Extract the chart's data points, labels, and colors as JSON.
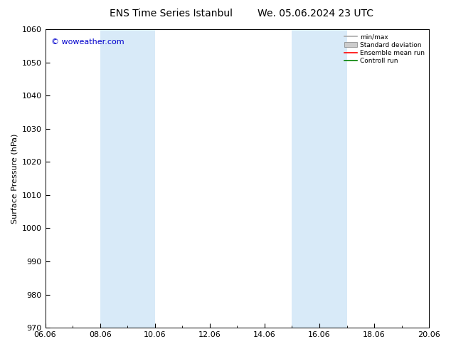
{
  "title_left": "ENS Time Series Istanbul",
  "title_right": "We. 05.06.2024 23 UTC",
  "ylabel": "Surface Pressure (hPa)",
  "ylim": [
    970,
    1060
  ],
  "yticks": [
    970,
    980,
    990,
    1000,
    1010,
    1020,
    1030,
    1040,
    1050,
    1060
  ],
  "xlim_left": 0,
  "xlim_right": 14,
  "xtick_positions": [
    0,
    2,
    4,
    6,
    8,
    10,
    12,
    14
  ],
  "xtick_labels": [
    "06.06",
    "08.06",
    "10.06",
    "12.06",
    "14.06",
    "16.06",
    "18.06",
    "20.06"
  ],
  "shaded_regions": [
    {
      "xmin": 2,
      "xmax": 4,
      "color": "#d8eaf8"
    },
    {
      "xmin": 9,
      "xmax": 11,
      "color": "#d8eaf8"
    }
  ],
  "watermark": "© woweather.com",
  "watermark_color": "#0000cc",
  "background_color": "#ffffff",
  "plot_bg_color": "#ffffff",
  "legend_items": [
    {
      "label": "min/max",
      "type": "line",
      "color": "#aaaaaa",
      "lw": 1.2
    },
    {
      "label": "Standard deviation",
      "type": "rect",
      "color": "#cccccc"
    },
    {
      "label": "Ensemble mean run",
      "type": "line",
      "color": "#ff0000",
      "lw": 1.2
    },
    {
      "label": "Controll run",
      "type": "line",
      "color": "#008000",
      "lw": 1.2
    }
  ],
  "title_fontsize": 10,
  "axis_fontsize": 8,
  "tick_fontsize": 8,
  "watermark_fontsize": 8
}
